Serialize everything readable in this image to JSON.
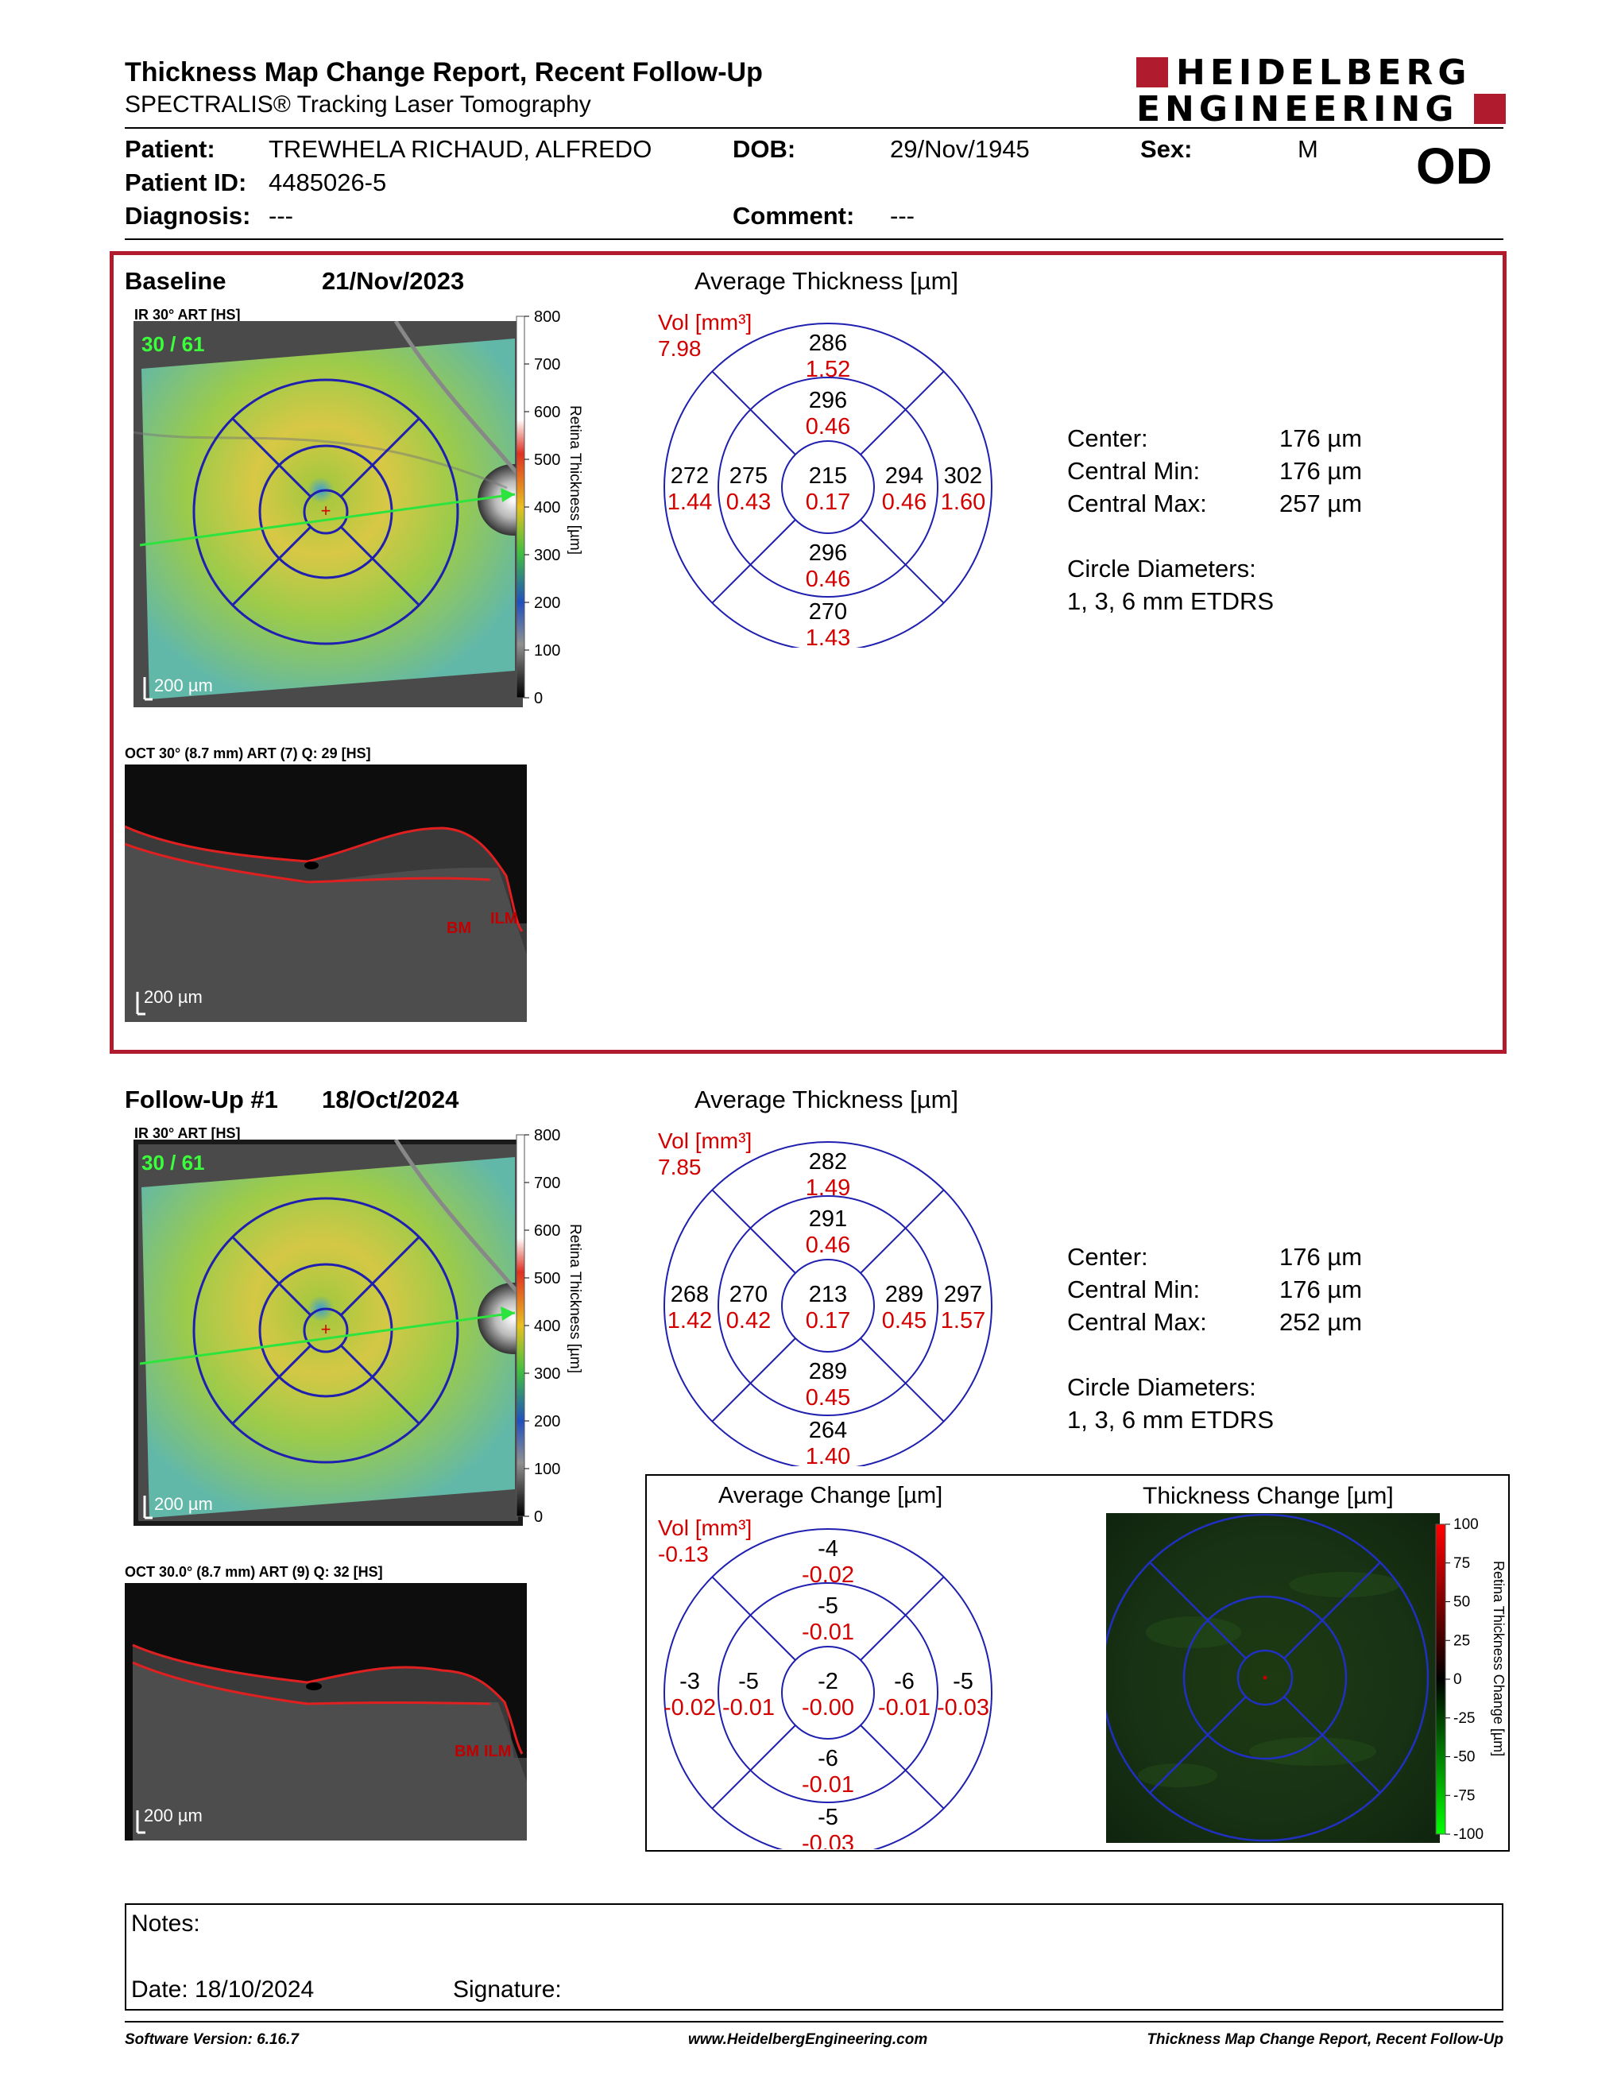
{
  "header": {
    "title": "Thickness Map Change Report, Recent Follow-Up",
    "subtitle": "SPECTRALIS® Tracking Laser Tomography",
    "logo_line1": "HEIDELBERG",
    "logo_line2": "ENGINEERING",
    "eye": "OD"
  },
  "patient": {
    "patient_label": "Patient:",
    "patient_value": "TREWHELA RICHAUD, ALFREDO",
    "dob_label": "DOB:",
    "dob_value": "29/Nov/1945",
    "sex_label": "Sex:",
    "sex_value": "M",
    "id_label": "Patient ID:",
    "id_value": "4485026-5",
    "diag_label": "Diagnosis:",
    "diag_value": "---",
    "comment_label": "Comment:",
    "comment_value": "---"
  },
  "baseline": {
    "title": "Baseline",
    "date": "21/Nov/2023",
    "ir_label": "IR 30° ART [HS]",
    "ir_overlay": "30 / 61",
    "ir_scale": "200 µm",
    "oct_label": "OCT 30° (8.7 mm) ART (7) Q: 29 [HS]",
    "oct_scale": "200 µm",
    "bm": "BM",
    "ilm": "ILM",
    "avg_title": "Average Thickness [µm]",
    "vol_label": "Vol [mm³]",
    "vol_total": "7.98",
    "grid": {
      "outer_sup": [
        "286",
        "1.52"
      ],
      "inner_sup": [
        "296",
        "0.46"
      ],
      "outer_temp": [
        "272",
        "1.44"
      ],
      "inner_temp": [
        "275",
        "0.43"
      ],
      "center": [
        "215",
        "0.17"
      ],
      "inner_nasal": [
        "294",
        "0.46"
      ],
      "outer_nasal": [
        "302",
        "1.60"
      ],
      "inner_inf": [
        "296",
        "0.46"
      ],
      "outer_inf": [
        "270",
        "1.43"
      ]
    },
    "stats": {
      "center_label": "Center:",
      "center_value": "176 µm",
      "min_label": "Central Min:",
      "min_value": "176 µm",
      "max_label": "Central Max:",
      "max_value": "257 µm",
      "circ_label": "Circle Diameters:",
      "circ_value": "1, 3, 6 mm ETDRS"
    }
  },
  "followup": {
    "title": "Follow-Up #1",
    "date": "18/Oct/2024",
    "ir_label": "IR 30° ART [HS]",
    "ir_overlay": "30 / 61",
    "ir_scale": "200 µm",
    "oct_label": "OCT 30.0° (8.7 mm) ART (9) Q: 32 [HS]",
    "oct_scale": "200 µm",
    "bm": "BM",
    "ilm": "ILM",
    "avg_title": "Average Thickness [µm]",
    "vol_label": "Vol [mm³]",
    "vol_total": "7.85",
    "grid": {
      "outer_sup": [
        "282",
        "1.49"
      ],
      "inner_sup": [
        "291",
        "0.46"
      ],
      "outer_temp": [
        "268",
        "1.42"
      ],
      "inner_temp": [
        "270",
        "0.42"
      ],
      "center": [
        "213",
        "0.17"
      ],
      "inner_nasal": [
        "289",
        "0.45"
      ],
      "outer_nasal": [
        "297",
        "1.57"
      ],
      "inner_inf": [
        "289",
        "0.45"
      ],
      "outer_inf": [
        "264",
        "1.40"
      ]
    },
    "stats": {
      "center_label": "Center:",
      "center_value": "176 µm",
      "min_label": "Central Min:",
      "min_value": "176 µm",
      "max_label": "Central Max:",
      "max_value": "252 µm",
      "circ_label": "Circle Diameters:",
      "circ_value": "1, 3, 6 mm ETDRS"
    }
  },
  "change": {
    "avg_title": "Average Change [µm]",
    "vol_label": "Vol [mm³]",
    "vol_total": "-0.13",
    "grid": {
      "outer_sup": [
        "-4",
        "-0.02"
      ],
      "inner_sup": [
        "-5",
        "-0.01"
      ],
      "outer_temp": [
        "-3",
        "-0.02"
      ],
      "inner_temp": [
        "-5",
        "-0.01"
      ],
      "center": [
        "-2",
        "-0.00"
      ],
      "inner_nasal": [
        "-6",
        "-0.01"
      ],
      "outer_nasal": [
        "-5",
        "-0.03"
      ],
      "inner_inf": [
        "-6",
        "-0.01"
      ],
      "outer_inf": [
        "-5",
        "-0.03"
      ]
    },
    "map_title": "Thickness Change [µm]",
    "scale_ticks": [
      "100",
      "75",
      "50",
      "25",
      "0",
      "-25",
      "-50",
      "-75",
      "-100"
    ],
    "scale_axis": "Retina Thickness Change [µm]"
  },
  "thickness_scale": {
    "ticks": [
      "800",
      "700",
      "600",
      "500",
      "400",
      "300",
      "200",
      "100",
      "0"
    ],
    "axis": "Retina Thickness [µm]"
  },
  "notes": {
    "notes_label": "Notes:",
    "date_label": "Date: 18/10/2024",
    "signature_label": "Signature:"
  },
  "footer": {
    "version": "Software Version: 6.16.7",
    "website": "www.HeidelbergEngineering.com",
    "report": "Thickness Map Change Report, Recent Follow-Up"
  },
  "colors": {
    "brand_red": "#b01c2e",
    "grid_blue": "#1f1fb0",
    "volume_red": "#d40000"
  }
}
